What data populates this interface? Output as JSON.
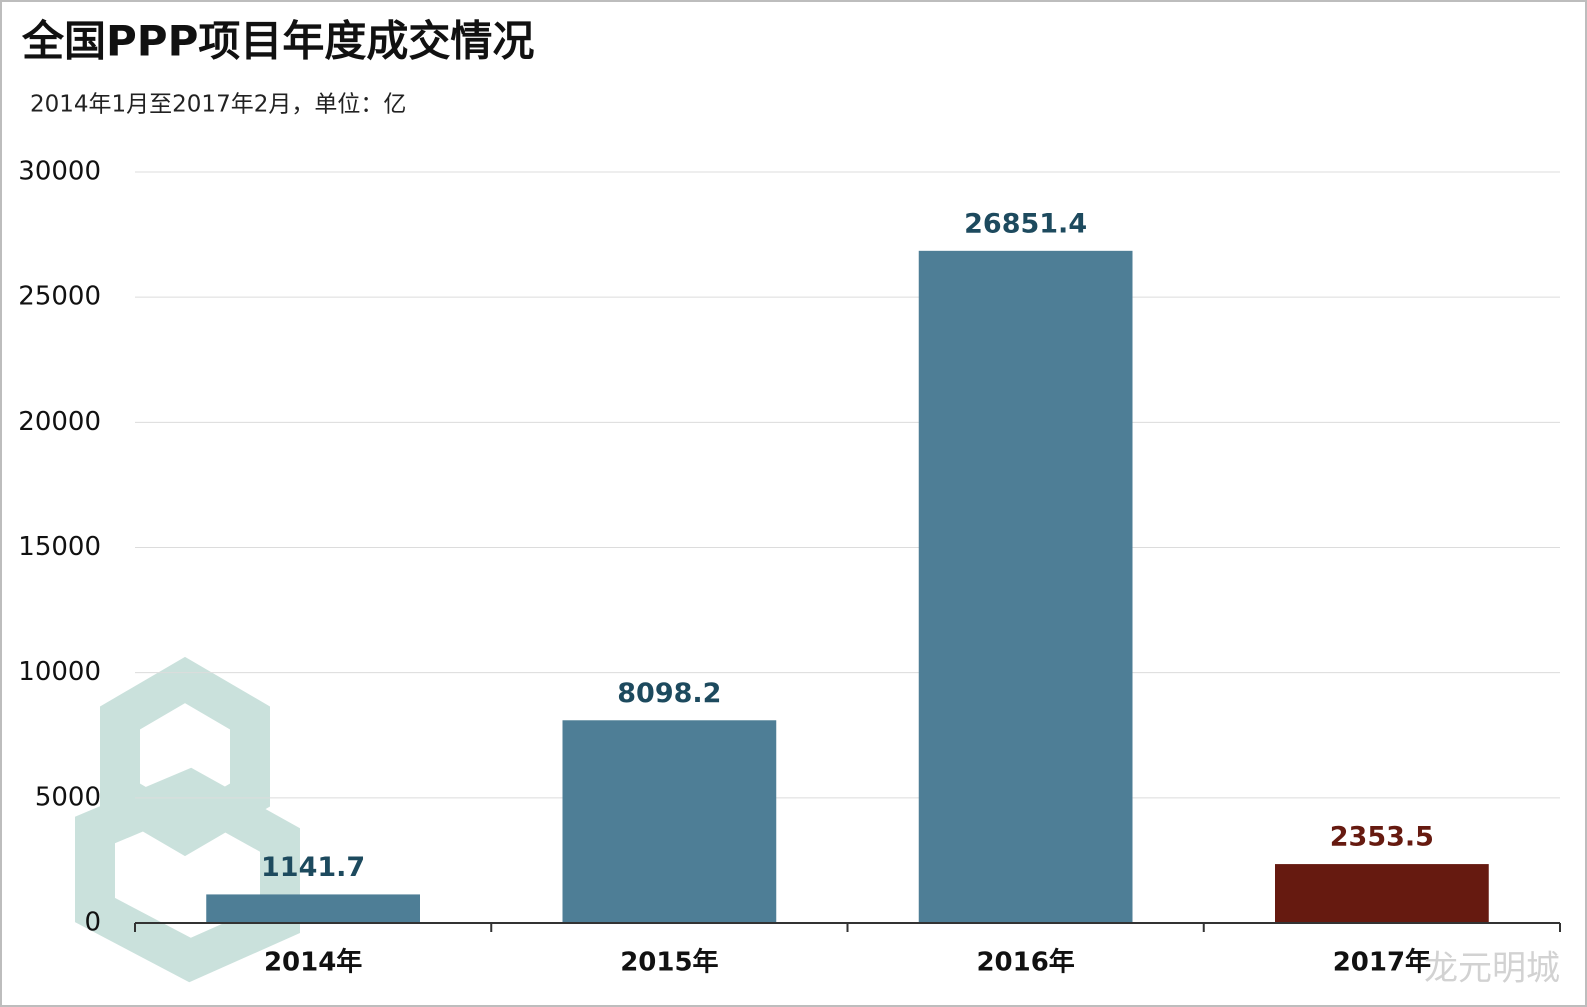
{
  "chart_data": {
    "type": "bar",
    "title": "全国PPP项目年度成交情况",
    "subtitle": "2014年1月至2017年2月，单位：亿",
    "categories": [
      "2014年",
      "2015年",
      "2016年",
      "2017年"
    ],
    "values": [
      1141.7,
      8098.2,
      26851.4,
      2353.5
    ],
    "colors": [
      "#4e7e96",
      "#4e7e96",
      "#4e7e96",
      "#661a10"
    ],
    "label_colors": [
      "#1d4a5e",
      "#1d4a5e",
      "#1d4a5e",
      "#661a10"
    ],
    "ylim": [
      0,
      30000
    ],
    "yticks": [
      0,
      5000,
      10000,
      15000,
      20000,
      25000,
      30000
    ],
    "grid": true,
    "watermark": "龙元明城"
  }
}
